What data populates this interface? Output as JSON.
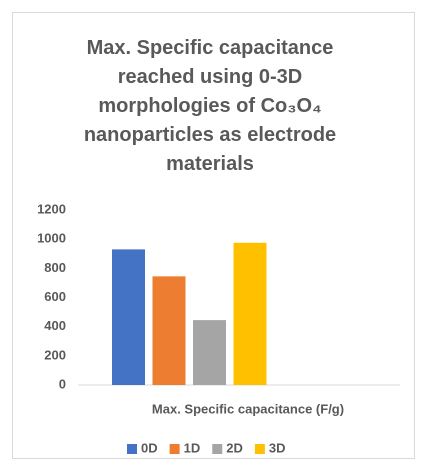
{
  "chart_data": {
    "type": "bar",
    "title": "Max. Specific capacitance reached using 0-3D morphologies of Co₃O₄ nanoparticles as electrode materials",
    "categories": [
      "Max. Specific capacitance (F/g)"
    ],
    "series": [
      {
        "name": "0D",
        "color": "#4472c4",
        "values": [
          930
        ]
      },
      {
        "name": "1D",
        "color": "#ed7d31",
        "values": [
          745
        ]
      },
      {
        "name": "2D",
        "color": "#a5a5a5",
        "values": [
          445
        ]
      },
      {
        "name": "3D",
        "color": "#ffc000",
        "values": [
          975
        ]
      }
    ],
    "ylim": [
      0,
      1200
    ],
    "yticks": [
      0,
      200,
      400,
      600,
      800,
      1000,
      1200
    ],
    "grid": false,
    "legend": "bottom"
  }
}
